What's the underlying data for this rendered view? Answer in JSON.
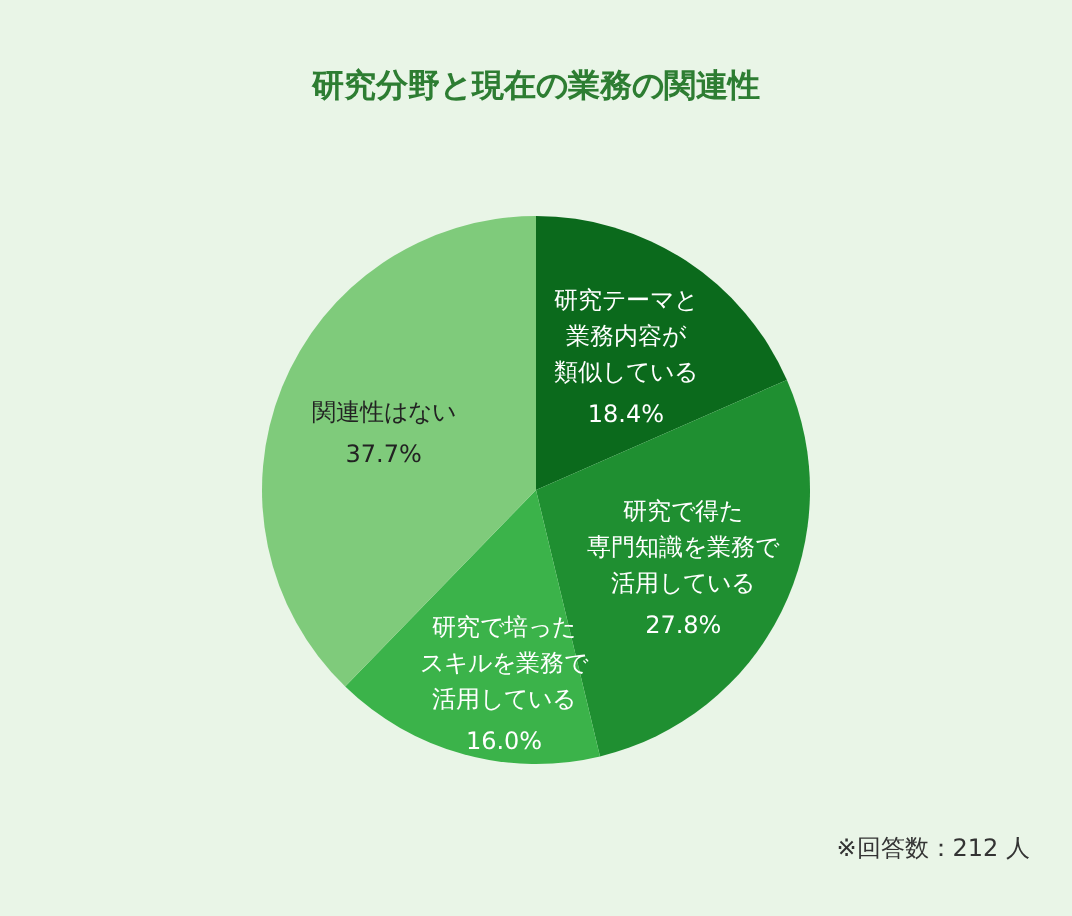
{
  "chart_data": {
    "type": "pie",
    "title": "研究分野と現在の業務の関連性",
    "categories": [
      "研究テーマと業務内容が類似している",
      "研究で得た専門知識を業務で活用している",
      "研究で培ったスキルを業務で活用している",
      "関連性はない"
    ],
    "values": [
      18.4,
      27.8,
      16.0,
      37.7
    ],
    "colors": [
      "#0b6a1c",
      "#1f8f31",
      "#3bb34a",
      "#7fcb7b"
    ],
    "value_labels": [
      "18.4%",
      "27.8%",
      "16.0%",
      "37.7%"
    ],
    "annotations": [
      "※回答数：212 人"
    ]
  }
}
